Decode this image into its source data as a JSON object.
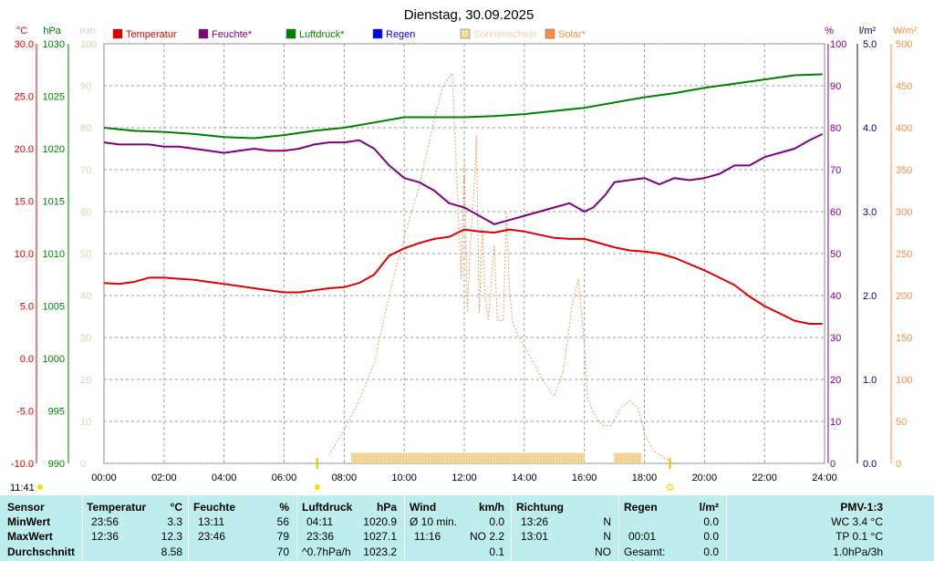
{
  "chart_data": {
    "type": "line",
    "title": "Dienstag, 30.09.2025",
    "time_label": "11:41",
    "colors": {
      "temp": "#e00000",
      "hum": "#800080",
      "press": "#008000",
      "rain": "#0000ff",
      "sun": "#f5d9a0",
      "solar": "#ff8c40",
      "sunTick": "#d4c6a0"
    },
    "axes": {
      "temp": {
        "unit": "°C",
        "min": -10,
        "max": 30,
        "ticks": [
          "30.0",
          "25.0",
          "20.0",
          "15.0",
          "10.0",
          "5.0",
          "0.0",
          "-5.0",
          "-10.0"
        ]
      },
      "press": {
        "unit": "hPa",
        "min": 990,
        "max": 1030,
        "ticks": [
          "1030",
          "1025",
          "1020",
          "1015",
          "1010",
          "1005",
          "1000",
          "995",
          "990"
        ]
      },
      "sun_min": {
        "unit": "min",
        "min": 0,
        "max": 100,
        "ticks": [
          "100",
          "90",
          "80",
          "70",
          "60",
          "50",
          "40",
          "30",
          "20",
          "10",
          "0"
        ]
      },
      "hum": {
        "unit": "%",
        "min": 0,
        "max": 100,
        "ticks": [
          "100",
          "90",
          "80",
          "70",
          "60",
          "50",
          "40",
          "30",
          "20",
          "10",
          "0"
        ]
      },
      "rain": {
        "unit": "l/m²",
        "min": 0,
        "max": 5,
        "ticks": [
          "5.0",
          "4.0",
          "3.0",
          "2.0",
          "1.0",
          "0.0"
        ]
      },
      "solar": {
        "unit": "W/m²",
        "min": 0,
        "max": 500,
        "ticks": [
          "500",
          "450",
          "400",
          "350",
          "300",
          "250",
          "200",
          "150",
          "100",
          "50",
          "0"
        ]
      },
      "x_ticks": [
        "00:00",
        "02:00",
        "04:00",
        "06:00",
        "08:00",
        "10:00",
        "12:00",
        "14:00",
        "16:00",
        "18:00",
        "20:00",
        "22:00",
        "24:00"
      ]
    },
    "legend": [
      {
        "key": "temp",
        "label": "Temperatur"
      },
      {
        "key": "hum",
        "label": "Feuchte*"
      },
      {
        "key": "press",
        "label": "Luftdruck*"
      },
      {
        "key": "rain",
        "label": "Regen"
      },
      {
        "key": "sun",
        "label": "Sonnenschein"
      },
      {
        "key": "solar",
        "label": "Solar*"
      }
    ],
    "series": {
      "temp": {
        "name": "Temperatur",
        "x": [
          0,
          0.5,
          1,
          1.5,
          2,
          2.5,
          3,
          3.5,
          4,
          4.5,
          5,
          5.5,
          6,
          6.5,
          7,
          7.5,
          8,
          8.5,
          9,
          9.5,
          10,
          10.5,
          11,
          11.5,
          12,
          12.5,
          13,
          13.5,
          14,
          14.5,
          15,
          15.5,
          16,
          16.5,
          17,
          17.5,
          18,
          18.5,
          19,
          19.5,
          20,
          20.5,
          21,
          21.5,
          22,
          22.5,
          23,
          23.5,
          23.93
        ],
        "y": [
          7.2,
          7.1,
          7.3,
          7.7,
          7.7,
          7.6,
          7.5,
          7.3,
          7.1,
          6.9,
          6.7,
          6.5,
          6.3,
          6.3,
          6.5,
          6.7,
          6.8,
          7.2,
          8.0,
          9.8,
          10.5,
          11.0,
          11.4,
          11.6,
          12.3,
          12.1,
          12.0,
          12.3,
          12.1,
          11.8,
          11.5,
          11.4,
          11.4,
          11.0,
          10.6,
          10.3,
          10.2,
          10.0,
          9.6,
          9.0,
          8.4,
          7.7,
          7.0,
          5.9,
          5.0,
          4.3,
          3.6,
          3.3,
          3.3
        ]
      },
      "hum": {
        "name": "Feuchte*",
        "x": [
          0,
          0.5,
          1,
          1.5,
          2,
          2.5,
          3,
          3.5,
          4,
          4.5,
          5,
          5.5,
          6,
          6.5,
          7,
          7.5,
          8,
          8.5,
          9,
          9.5,
          10,
          10.5,
          11,
          11.5,
          12,
          12.5,
          13,
          13.5,
          14,
          14.5,
          15,
          15.5,
          16,
          16.3,
          16.7,
          17,
          17.5,
          18,
          18.5,
          19,
          19.5,
          20,
          20.5,
          21,
          21.5,
          22,
          22.5,
          23,
          23.5,
          23.93
        ],
        "y": [
          76.5,
          76,
          76,
          76,
          75.5,
          75.5,
          75,
          74.5,
          74,
          74.5,
          75,
          74.5,
          74.5,
          75,
          76,
          76.5,
          76.5,
          77,
          75,
          71,
          68,
          67,
          65,
          62,
          61,
          59,
          57,
          58,
          59,
          60,
          61,
          62,
          60,
          61,
          64,
          67,
          67.5,
          68,
          66.5,
          68,
          67.5,
          68,
          69,
          71,
          71,
          73,
          74,
          75,
          77,
          78.5
        ]
      },
      "press": {
        "name": "Luftdruck*",
        "x": [
          0,
          1,
          2,
          3,
          4,
          5,
          6,
          7,
          8,
          9,
          10,
          11,
          12,
          13,
          14,
          15,
          16,
          17,
          18,
          19,
          20,
          21,
          22,
          23,
          23.93
        ],
        "y": [
          1022.0,
          1021.7,
          1021.6,
          1021.4,
          1021.1,
          1021.0,
          1021.3,
          1021.7,
          1022.0,
          1022.5,
          1023.0,
          1023.0,
          1023.0,
          1023.1,
          1023.3,
          1023.6,
          1023.9,
          1024.4,
          1024.9,
          1025.3,
          1025.8,
          1026.2,
          1026.6,
          1027.0,
          1027.1
        ]
      },
      "solar": {
        "name": "Solar*",
        "x": [
          7.5,
          8,
          8.5,
          9,
          9.5,
          10,
          10.5,
          11,
          11.3,
          11.6,
          11.8,
          11.9,
          12.0,
          12.1,
          12.2,
          12.3,
          12.4,
          12.5,
          12.6,
          12.7,
          12.8,
          13.0,
          13.1,
          13.3,
          13.4,
          13.5,
          13.6,
          13.8,
          14.0,
          14.3,
          14.6,
          15.0,
          15.3,
          15.6,
          15.8,
          15.9,
          16.0,
          16.1,
          16.3,
          16.6,
          16.9,
          17.2,
          17.5,
          17.8,
          18.0,
          18.3,
          18.6,
          19.0
        ],
        "y": [
          10,
          40,
          75,
          120,
          200,
          270,
          330,
          410,
          450,
          465,
          300,
          220,
          360,
          180,
          260,
          310,
          390,
          180,
          280,
          200,
          170,
          260,
          170,
          170,
          300,
          210,
          170,
          150,
          140,
          120,
          100,
          80,
          110,
          190,
          220,
          180,
          140,
          80,
          60,
          45,
          45,
          65,
          75,
          65,
          35,
          15,
          8,
          0
        ]
      },
      "sunshine": {
        "name": "Sonnenschein",
        "blocks": [
          [
            8.25,
            16.0
          ],
          [
            17.0,
            17.9
          ]
        ],
        "level": 2.5
      }
    }
  },
  "table": {
    "sensor": {
      "title": "Sensor",
      "rows": [
        "MinWert",
        "MaxWert",
        "Durchschnitt"
      ]
    },
    "temperatur": {
      "title": "Temperatur",
      "unit": "°C",
      "time": [
        "23:56",
        "12:36"
      ],
      "val": [
        "3.3",
        "12.3",
        "8.58"
      ]
    },
    "feuchte": {
      "title": "Feuchte",
      "unit": "%",
      "time": [
        "13:11",
        "23:46"
      ],
      "val": [
        "56",
        "79",
        "70"
      ]
    },
    "luftdruck": {
      "title": "Luftdruck",
      "unit": "hPa",
      "time": [
        "04:11",
        "23:36",
        "^0.7hPa/h"
      ],
      "val": [
        "1020.9",
        "1027.1",
        "1023.2"
      ]
    },
    "wind": {
      "title": "Wind",
      "unit": "km/h",
      "label": [
        "Ø 10 min.",
        "11:16"
      ],
      "val": [
        "0.0",
        "NO 2.2",
        "0.1"
      ]
    },
    "richtung": {
      "title": "Richtung",
      "time": [
        "13:26",
        "13:01"
      ],
      "dir": [
        "N",
        "N",
        "NO"
      ]
    },
    "regen": {
      "title": "Regen",
      "unit": "l/m²",
      "time": [
        "00:01",
        "Gesamt:"
      ],
      "val": [
        "0.0",
        "0.0",
        "0.0"
      ]
    },
    "pmv": {
      "title": "PMV-1:3",
      "rows": [
        "WC 3.4 °C",
        "TP 0.1 °C",
        "1.0hPa/3h"
      ]
    }
  }
}
